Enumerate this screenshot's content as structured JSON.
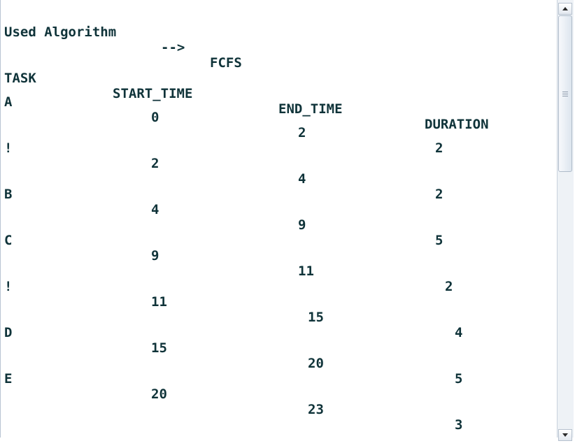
{
  "header": {
    "label": "Used Algorithm",
    "arrow": "-->",
    "algorithm": "FCFS"
  },
  "table": {
    "columns": [
      "TASK",
      "START_TIME",
      "END_TIME",
      "DURATION"
    ],
    "rows": [
      {
        "task": "A",
        "start": "0",
        "end": "2",
        "duration": "2"
      },
      {
        "task": "!",
        "start": "2",
        "end": "4",
        "duration": "2"
      },
      {
        "task": "B",
        "start": "4",
        "end": "9",
        "duration": "5"
      },
      {
        "task": "C",
        "start": "9",
        "end": "11",
        "duration": "2"
      },
      {
        "task": "!",
        "start": "11",
        "end": "15",
        "duration": "4"
      },
      {
        "task": "D",
        "start": "15",
        "end": "20",
        "duration": "5"
      },
      {
        "task": "E",
        "start": "20",
        "end": "23",
        "duration": "3"
      }
    ]
  },
  "icons": {
    "scroll_up": "arrow-up-icon",
    "scroll_down": "arrow-down-icon",
    "thumb_grip": "grip-icon"
  },
  "colors": {
    "text": "#0f3339",
    "background": "#ffffff"
  }
}
